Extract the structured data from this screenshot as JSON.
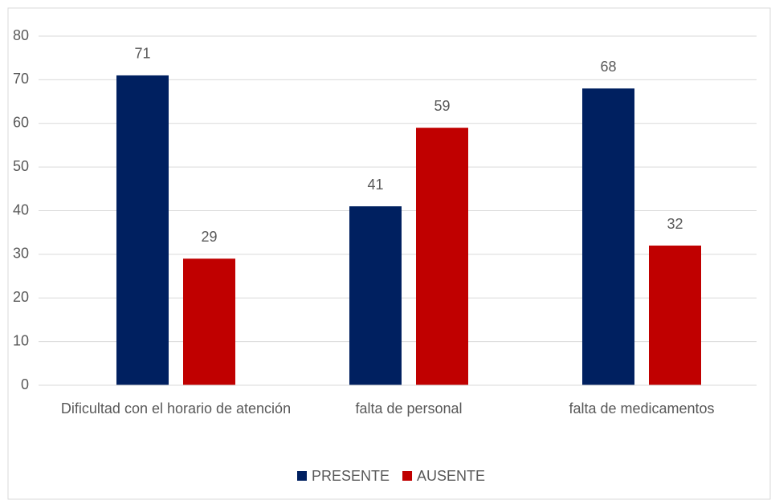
{
  "chart_data": {
    "type": "bar",
    "categories": [
      "Dificultad con el horario de atención",
      "falta de personal",
      "falta de medicamentos"
    ],
    "series": [
      {
        "name": "PRESENTE",
        "color": "#002060",
        "values": [
          71,
          41,
          68
        ]
      },
      {
        "name": "AUSENTE",
        "color": "#c00000",
        "values": [
          29,
          59,
          32
        ]
      }
    ],
    "ylim": [
      0,
      80
    ],
    "yticks": [
      0,
      10,
      20,
      30,
      40,
      50,
      60,
      70,
      80
    ],
    "grid": true,
    "legend": "bottom"
  }
}
